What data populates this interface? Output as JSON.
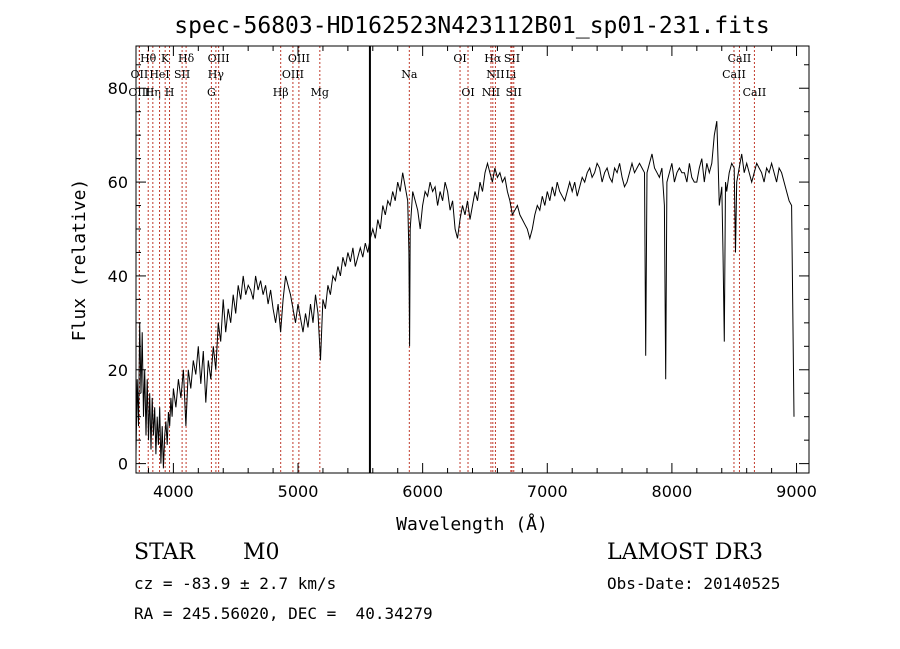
{
  "chart_data": {
    "type": "line",
    "title": "spec-56803-HD162523N423112B01_sp01-231.fits",
    "xlabel": "Wavelength (Å)",
    "ylabel": "Flux (relative)",
    "xlim": [
      3700,
      9100
    ],
    "ylim": [
      -2,
      89
    ],
    "xticks": [
      4000,
      5000,
      6000,
      7000,
      8000,
      9000
    ],
    "yticks": [
      0,
      20,
      40,
      60,
      80
    ],
    "grid": false,
    "series": [
      {
        "name": "flux",
        "points": [
          [
            3700,
            2
          ],
          [
            3710,
            18
          ],
          [
            3720,
            8
          ],
          [
            3730,
            30
          ],
          [
            3740,
            15
          ],
          [
            3750,
            28
          ],
          [
            3760,
            10
          ],
          [
            3770,
            20
          ],
          [
            3780,
            6
          ],
          [
            3790,
            18
          ],
          [
            3800,
            5
          ],
          [
            3810,
            15
          ],
          [
            3820,
            3
          ],
          [
            3830,
            14
          ],
          [
            3840,
            6
          ],
          [
            3850,
            12
          ],
          [
            3860,
            2
          ],
          [
            3870,
            10
          ],
          [
            3880,
            4
          ],
          [
            3890,
            12
          ],
          [
            3900,
            0
          ],
          [
            3910,
            8
          ],
          [
            3920,
            -1
          ],
          [
            3930,
            6
          ],
          [
            3940,
            9
          ],
          [
            3950,
            4
          ],
          [
            3960,
            11
          ],
          [
            3970,
            8
          ],
          [
            3980,
            14
          ],
          [
            3990,
            10
          ],
          [
            4000,
            16
          ],
          [
            4020,
            12
          ],
          [
            4040,
            18
          ],
          [
            4060,
            14
          ],
          [
            4080,
            20
          ],
          [
            4100,
            8
          ],
          [
            4120,
            20
          ],
          [
            4140,
            16
          ],
          [
            4160,
            22
          ],
          [
            4180,
            19
          ],
          [
            4200,
            25
          ],
          [
            4220,
            17
          ],
          [
            4240,
            24
          ],
          [
            4260,
            13
          ],
          [
            4280,
            22
          ],
          [
            4300,
            18
          ],
          [
            4320,
            25
          ],
          [
            4340,
            20
          ],
          [
            4360,
            30
          ],
          [
            4380,
            26
          ],
          [
            4400,
            35
          ],
          [
            4420,
            28
          ],
          [
            4440,
            33
          ],
          [
            4460,
            30
          ],
          [
            4480,
            36
          ],
          [
            4500,
            32
          ],
          [
            4520,
            38
          ],
          [
            4540,
            35
          ],
          [
            4560,
            40
          ],
          [
            4580,
            36
          ],
          [
            4600,
            38
          ],
          [
            4620,
            37
          ],
          [
            4640,
            35
          ],
          [
            4660,
            40
          ],
          [
            4680,
            37
          ],
          [
            4700,
            39
          ],
          [
            4720,
            36
          ],
          [
            4740,
            38
          ],
          [
            4760,
            34
          ],
          [
            4780,
            37
          ],
          [
            4800,
            33
          ],
          [
            4820,
            30
          ],
          [
            4840,
            34
          ],
          [
            4860,
            28
          ],
          [
            4880,
            35
          ],
          [
            4900,
            40
          ],
          [
            4920,
            38
          ],
          [
            4940,
            36
          ],
          [
            4960,
            33
          ],
          [
            4980,
            30
          ],
          [
            5000,
            34
          ],
          [
            5020,
            31
          ],
          [
            5040,
            28
          ],
          [
            5060,
            32
          ],
          [
            5080,
            29
          ],
          [
            5100,
            34
          ],
          [
            5120,
            30
          ],
          [
            5140,
            36
          ],
          [
            5160,
            32
          ],
          [
            5180,
            22
          ],
          [
            5200,
            35
          ],
          [
            5220,
            33
          ],
          [
            5240,
            38
          ],
          [
            5260,
            36
          ],
          [
            5280,
            40
          ],
          [
            5300,
            39
          ],
          [
            5320,
            42
          ],
          [
            5340,
            40
          ],
          [
            5360,
            44
          ],
          [
            5380,
            42
          ],
          [
            5400,
            45
          ],
          [
            5420,
            43
          ],
          [
            5440,
            46
          ],
          [
            5460,
            42
          ],
          [
            5480,
            44
          ],
          [
            5500,
            46
          ],
          [
            5520,
            44
          ],
          [
            5540,
            47
          ],
          [
            5560,
            45
          ],
          [
            5580,
            48
          ],
          [
            5600,
            50
          ],
          [
            5620,
            48
          ],
          [
            5640,
            52
          ],
          [
            5660,
            50
          ],
          [
            5680,
            55
          ],
          [
            5700,
            53
          ],
          [
            5720,
            56
          ],
          [
            5740,
            55
          ],
          [
            5760,
            58
          ],
          [
            5780,
            56
          ],
          [
            5800,
            60
          ],
          [
            5820,
            58
          ],
          [
            5840,
            62
          ],
          [
            5860,
            59
          ],
          [
            5880,
            56
          ],
          [
            5890,
            45
          ],
          [
            5895,
            25
          ],
          [
            5900,
            50
          ],
          [
            5920,
            58
          ],
          [
            5940,
            56
          ],
          [
            5960,
            54
          ],
          [
            5980,
            50
          ],
          [
            6000,
            55
          ],
          [
            6020,
            58
          ],
          [
            6040,
            57
          ],
          [
            6060,
            60
          ],
          [
            6080,
            58
          ],
          [
            6100,
            59
          ],
          [
            6120,
            55
          ],
          [
            6140,
            58
          ],
          [
            6160,
            56
          ],
          [
            6180,
            60
          ],
          [
            6200,
            58
          ],
          [
            6220,
            54
          ],
          [
            6240,
            56
          ],
          [
            6260,
            50
          ],
          [
            6280,
            48
          ],
          [
            6300,
            52
          ],
          [
            6320,
            55
          ],
          [
            6340,
            53
          ],
          [
            6360,
            56
          ],
          [
            6380,
            52
          ],
          [
            6400,
            55
          ],
          [
            6420,
            58
          ],
          [
            6440,
            56
          ],
          [
            6460,
            60
          ],
          [
            6480,
            58
          ],
          [
            6500,
            62
          ],
          [
            6520,
            64
          ],
          [
            6540,
            62
          ],
          [
            6560,
            60
          ],
          [
            6580,
            63
          ],
          [
            6600,
            61
          ],
          [
            6620,
            62
          ],
          [
            6640,
            60
          ],
          [
            6660,
            61
          ],
          [
            6680,
            58
          ],
          [
            6700,
            56
          ],
          [
            6720,
            53
          ],
          [
            6740,
            54
          ],
          [
            6760,
            55
          ],
          [
            6780,
            53
          ],
          [
            6800,
            52
          ],
          [
            6820,
            51
          ],
          [
            6840,
            50
          ],
          [
            6860,
            48
          ],
          [
            6880,
            50
          ],
          [
            6900,
            53
          ],
          [
            6920,
            55
          ],
          [
            6940,
            54
          ],
          [
            6960,
            57
          ],
          [
            6980,
            55
          ],
          [
            7000,
            58
          ],
          [
            7020,
            56
          ],
          [
            7040,
            59
          ],
          [
            7060,
            57
          ],
          [
            7080,
            60
          ],
          [
            7100,
            58
          ],
          [
            7120,
            57
          ],
          [
            7140,
            56
          ],
          [
            7160,
            58
          ],
          [
            7180,
            60
          ],
          [
            7200,
            58
          ],
          [
            7220,
            60
          ],
          [
            7240,
            57
          ],
          [
            7260,
            59
          ],
          [
            7280,
            61
          ],
          [
            7300,
            60
          ],
          [
            7320,
            62
          ],
          [
            7340,
            63
          ],
          [
            7360,
            61
          ],
          [
            7380,
            62
          ],
          [
            7400,
            64
          ],
          [
            7420,
            63
          ],
          [
            7440,
            60
          ],
          [
            7460,
            62
          ],
          [
            7480,
            63
          ],
          [
            7500,
            61
          ],
          [
            7520,
            60
          ],
          [
            7540,
            63
          ],
          [
            7560,
            62
          ],
          [
            7580,
            64
          ],
          [
            7600,
            61
          ],
          [
            7620,
            59
          ],
          [
            7640,
            60
          ],
          [
            7660,
            62
          ],
          [
            7680,
            64
          ],
          [
            7700,
            62
          ],
          [
            7720,
            63
          ],
          [
            7740,
            64
          ],
          [
            7760,
            63
          ],
          [
            7780,
            62
          ],
          [
            7790,
            23
          ],
          [
            7800,
            62
          ],
          [
            7820,
            64
          ],
          [
            7840,
            66
          ],
          [
            7860,
            63
          ],
          [
            7880,
            62
          ],
          [
            7900,
            61
          ],
          [
            7920,
            63
          ],
          [
            7940,
            55
          ],
          [
            7950,
            18
          ],
          [
            7960,
            60
          ],
          [
            7980,
            62
          ],
          [
            8000,
            64
          ],
          [
            8020,
            60
          ],
          [
            8040,
            62
          ],
          [
            8060,
            63
          ],
          [
            8080,
            62
          ],
          [
            8100,
            62
          ],
          [
            8120,
            60
          ],
          [
            8140,
            64
          ],
          [
            8160,
            61
          ],
          [
            8180,
            60
          ],
          [
            8200,
            60
          ],
          [
            8220,
            63
          ],
          [
            8240,
            65
          ],
          [
            8260,
            60
          ],
          [
            8280,
            64
          ],
          [
            8300,
            62
          ],
          [
            8320,
            64
          ],
          [
            8340,
            70
          ],
          [
            8360,
            73
          ],
          [
            8370,
            65
          ],
          [
            8380,
            55
          ],
          [
            8400,
            59
          ],
          [
            8410,
            45
          ],
          [
            8420,
            26
          ],
          [
            8430,
            60
          ],
          [
            8440,
            58
          ],
          [
            8460,
            62
          ],
          [
            8480,
            64
          ],
          [
            8500,
            63
          ],
          [
            8510,
            45
          ],
          [
            8520,
            60
          ],
          [
            8540,
            63
          ],
          [
            8560,
            66
          ],
          [
            8580,
            62
          ],
          [
            8600,
            64
          ],
          [
            8620,
            62
          ],
          [
            8640,
            60
          ],
          [
            8660,
            62
          ],
          [
            8680,
            64
          ],
          [
            8700,
            63
          ],
          [
            8720,
            62
          ],
          [
            8740,
            60
          ],
          [
            8760,
            63
          ],
          [
            8780,
            62
          ],
          [
            8800,
            64
          ],
          [
            8820,
            62
          ],
          [
            8840,
            60
          ],
          [
            8860,
            63
          ],
          [
            8880,
            62
          ],
          [
            8900,
            60
          ],
          [
            8920,
            58
          ],
          [
            8940,
            56
          ],
          [
            8960,
            55
          ],
          [
            8980,
            10
          ]
        ]
      }
    ],
    "spectral_lines": [
      {
        "label": "Hθ",
        "wl": 3798,
        "row": 1
      },
      {
        "label": "OII",
        "wl": 3727,
        "row": 2
      },
      {
        "label": "OIII",
        "wl": 3727,
        "row": 3
      },
      {
        "label": "Hη",
        "wl": 3835,
        "row": 3
      },
      {
        "label": "HeI",
        "wl": 3889,
        "row": 2
      },
      {
        "label": "K",
        "wl": 3934,
        "row": 1
      },
      {
        "label": "H",
        "wl": 3969,
        "row": 3
      },
      {
        "label": "SII",
        "wl": 4070,
        "row": 2
      },
      {
        "label": "Hδ",
        "wl": 4102,
        "row": 1
      },
      {
        "label": "OIII",
        "wl": 4363,
        "row": 1
      },
      {
        "label": "Hγ",
        "wl": 4341,
        "row": 2
      },
      {
        "label": "G",
        "wl": 4305,
        "row": 3
      },
      {
        "label": "OIII",
        "wl": 5007,
        "row": 1
      },
      {
        "label": "OIII",
        "wl": 4959,
        "row": 2
      },
      {
        "label": "Hβ",
        "wl": 4861,
        "row": 3
      },
      {
        "label": "Mg",
        "wl": 5175,
        "row": 3
      },
      {
        "label": "Na",
        "wl": 5893,
        "row": 2
      },
      {
        "label": "OI",
        "wl": 6300,
        "row": 1
      },
      {
        "label": "OI",
        "wl": 6364,
        "row": 3
      },
      {
        "label": "Hα",
        "wl": 6563,
        "row": 1
      },
      {
        "label": "SII",
        "wl": 6717,
        "row": 1
      },
      {
        "label": "NII",
        "wl": 6584,
        "row": 2
      },
      {
        "label": "Li",
        "wl": 6708,
        "row": 2
      },
      {
        "label": "NII",
        "wl": 6548,
        "row": 3
      },
      {
        "label": "SII",
        "wl": 6731,
        "row": 3
      },
      {
        "label": "CaII",
        "wl": 8542,
        "row": 1
      },
      {
        "label": "CaII",
        "wl": 8498,
        "row": 2
      },
      {
        "label": "CaII",
        "wl": 8662,
        "row": 3
      }
    ],
    "reference_line_wl": 5577
  },
  "info": {
    "object_class": "STAR",
    "subclass": "M0",
    "survey": "LAMOST DR3",
    "redshift": "cz = -83.9 ± 2.7 km/s",
    "obs_date": "Obs-Date: 20140525",
    "coords": "RA = 245.56020, DEC =  40.34279"
  },
  "colors": {
    "line": "#000000",
    "marker": "#c0392b",
    "axis": "#000000"
  }
}
